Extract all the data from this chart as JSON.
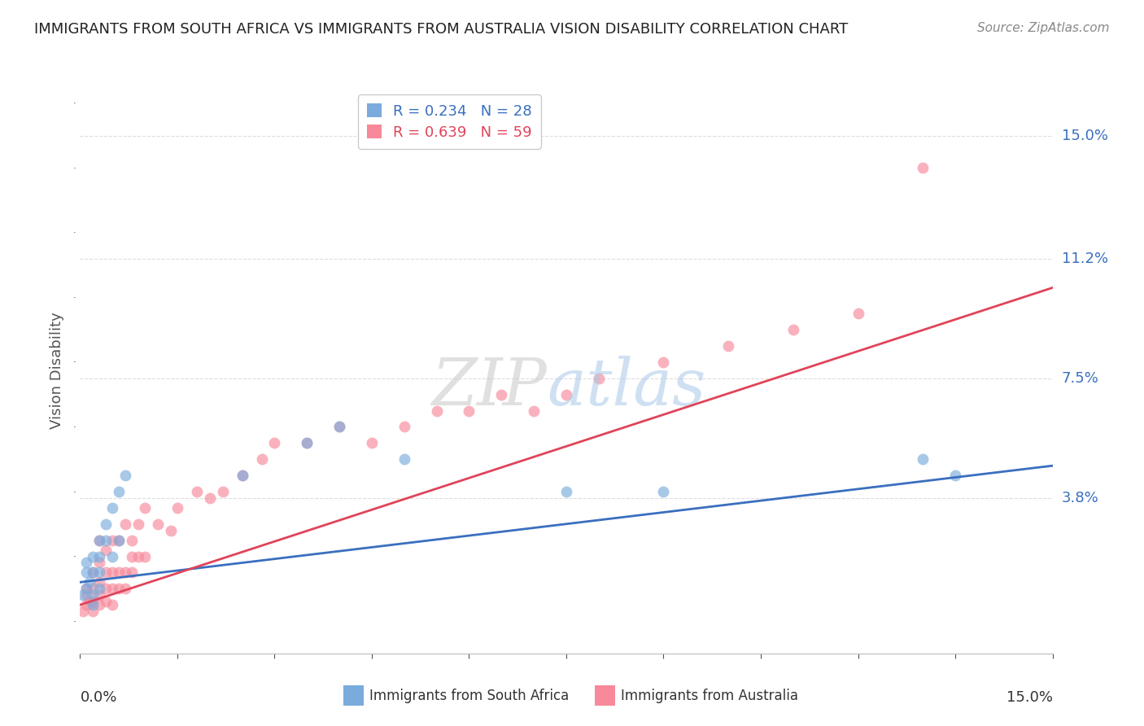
{
  "title": "IMMIGRANTS FROM SOUTH AFRICA VS IMMIGRANTS FROM AUSTRALIA VISION DISABILITY CORRELATION CHART",
  "source": "Source: ZipAtlas.com",
  "ylabel": "Vision Disability",
  "ytick_labels": [
    "15.0%",
    "11.2%",
    "7.5%",
    "3.8%"
  ],
  "ytick_values": [
    0.15,
    0.112,
    0.075,
    0.038
  ],
  "xmin": 0.0,
  "xmax": 0.15,
  "ymin": -0.01,
  "ymax": 0.165,
  "legend_entries": [
    {
      "label": "R = 0.234   N = 28",
      "color": "#7aabdc"
    },
    {
      "label": "R = 0.639   N = 59",
      "color": "#f7899a"
    }
  ],
  "south_africa_x": [
    0.0005,
    0.001,
    0.001,
    0.001,
    0.0015,
    0.002,
    0.002,
    0.002,
    0.002,
    0.003,
    0.003,
    0.003,
    0.003,
    0.004,
    0.004,
    0.005,
    0.005,
    0.006,
    0.006,
    0.007,
    0.025,
    0.035,
    0.04,
    0.05,
    0.075,
    0.09,
    0.13,
    0.135
  ],
  "south_africa_y": [
    0.008,
    0.01,
    0.015,
    0.018,
    0.012,
    0.005,
    0.008,
    0.015,
    0.02,
    0.01,
    0.015,
    0.02,
    0.025,
    0.025,
    0.03,
    0.02,
    0.035,
    0.025,
    0.04,
    0.045,
    0.045,
    0.055,
    0.06,
    0.05,
    0.04,
    0.04,
    0.05,
    0.045
  ],
  "australia_x": [
    0.0005,
    0.001,
    0.001,
    0.001,
    0.0015,
    0.002,
    0.002,
    0.002,
    0.002,
    0.003,
    0.003,
    0.003,
    0.003,
    0.003,
    0.004,
    0.004,
    0.004,
    0.004,
    0.005,
    0.005,
    0.005,
    0.005,
    0.006,
    0.006,
    0.006,
    0.007,
    0.007,
    0.007,
    0.008,
    0.008,
    0.008,
    0.009,
    0.009,
    0.01,
    0.01,
    0.012,
    0.014,
    0.015,
    0.018,
    0.02,
    0.022,
    0.025,
    0.028,
    0.03,
    0.035,
    0.04,
    0.045,
    0.05,
    0.055,
    0.06,
    0.065,
    0.07,
    0.075,
    0.08,
    0.09,
    0.1,
    0.11,
    0.12,
    0.13
  ],
  "australia_y": [
    0.003,
    0.005,
    0.008,
    0.01,
    0.006,
    0.003,
    0.006,
    0.01,
    0.015,
    0.005,
    0.008,
    0.012,
    0.018,
    0.025,
    0.006,
    0.01,
    0.015,
    0.022,
    0.005,
    0.01,
    0.015,
    0.025,
    0.01,
    0.015,
    0.025,
    0.01,
    0.015,
    0.03,
    0.015,
    0.02,
    0.025,
    0.02,
    0.03,
    0.02,
    0.035,
    0.03,
    0.028,
    0.035,
    0.04,
    0.038,
    0.04,
    0.045,
    0.05,
    0.055,
    0.055,
    0.06,
    0.055,
    0.06,
    0.065,
    0.065,
    0.07,
    0.065,
    0.07,
    0.075,
    0.08,
    0.085,
    0.09,
    0.095,
    0.14
  ],
  "sa_line_x": [
    0.0,
    0.15
  ],
  "sa_line_y": [
    0.012,
    0.048
  ],
  "au_line_x": [
    0.0,
    0.15
  ],
  "au_line_y": [
    0.005,
    0.103
  ],
  "point_color_sa": "#7aabdc",
  "point_color_au": "#f7899a",
  "line_color_sa": "#3a6fbf",
  "line_color_au": "#e0445a",
  "background_color": "#ffffff",
  "grid_color": "#dddddd",
  "bottom_legend_sa_color": "#7aabdc",
  "bottom_legend_au_color": "#f7899a",
  "bottom_legend_text_color": "#333333"
}
